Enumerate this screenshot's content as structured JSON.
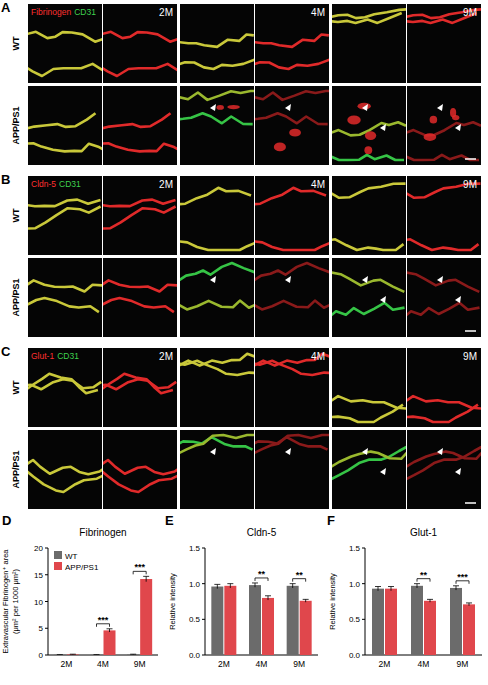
{
  "figure_panels": [
    {
      "letter": "A",
      "stains": [
        {
          "text": "Fibrinogen",
          "color": "#ff3030"
        },
        {
          "text": "CD31",
          "color": "#3fd24f"
        }
      ],
      "rows": [
        "WT",
        "APP/PS1"
      ],
      "timepoints": [
        "2M",
        "4M",
        "9M"
      ]
    },
    {
      "letter": "B",
      "stains": [
        {
          "text": "Cldn-5",
          "color": "#ff3030"
        },
        {
          "text": "CD31",
          "color": "#3fd24f"
        }
      ],
      "rows": [
        "WT",
        "APP/PS1"
      ],
      "timepoints": [
        "2M",
        "4M",
        "9M"
      ]
    },
    {
      "letter": "C",
      "stains": [
        {
          "text": "Glut-1",
          "color": "#ff3030"
        },
        {
          "text": "CD31",
          "color": "#3fd24f"
        }
      ],
      "rows": [
        "WT",
        "APP/PS1"
      ],
      "timepoints": [
        "2M",
        "4M",
        "9M"
      ]
    }
  ],
  "chart_data": [
    {
      "panel": "D",
      "type": "bar",
      "title": "Fibrinogen",
      "ylabel": [
        "Extravascular Fibrinogen⁺ area",
        "(μm² per 1000 μm²)"
      ],
      "categories": [
        "2M",
        "4M",
        "9M"
      ],
      "series": [
        {
          "name": "WT",
          "color": "#6b6b6b",
          "values": [
            0.05,
            0.05,
            0.1
          ],
          "errors": [
            0.02,
            0.02,
            0.05
          ]
        },
        {
          "name": "APP/PS1",
          "color": "#e0474c",
          "values": [
            0.1,
            4.6,
            14.2
          ],
          "errors": [
            0.05,
            0.3,
            0.5
          ]
        }
      ],
      "ylim": [
        0,
        20
      ],
      "yticks": [
        0,
        5,
        10,
        15,
        20
      ],
      "legend": "upper left",
      "annotations": [
        {
          "text": "***",
          "category": "4M"
        },
        {
          "text": "***",
          "category": "9M"
        }
      ]
    },
    {
      "panel": "E",
      "type": "bar",
      "title": "Cldn-5",
      "ylabel": [
        "Relative intensity"
      ],
      "categories": [
        "2M",
        "4M",
        "9M"
      ],
      "series": [
        {
          "name": "WT",
          "color": "#6b6b6b",
          "values": [
            0.96,
            0.98,
            0.97
          ],
          "errors": [
            0.03,
            0.03,
            0.03
          ]
        },
        {
          "name": "APP/PS1",
          "color": "#e0474c",
          "values": [
            0.97,
            0.8,
            0.76
          ],
          "errors": [
            0.03,
            0.03,
            0.02
          ]
        }
      ],
      "ylim": [
        0,
        1.5
      ],
      "yticks": [
        {
          "value": 0,
          "label": "0.0"
        },
        {
          "value": 0.5,
          "label": "0.5"
        },
        {
          "value": 1,
          "label": "1.0"
        },
        {
          "value": 1.5,
          "label": "1.5"
        }
      ],
      "annotations": [
        {
          "text": "**",
          "category": "4M"
        },
        {
          "text": "**",
          "category": "9M"
        }
      ]
    },
    {
      "panel": "F",
      "type": "bar",
      "title": "Glut-1",
      "ylabel": [
        "Relative intensity"
      ],
      "categories": [
        "2M",
        "4M",
        "9M"
      ],
      "series": [
        {
          "name": "WT",
          "color": "#6b6b6b",
          "values": [
            0.93,
            0.97,
            0.94
          ],
          "errors": [
            0.03,
            0.03,
            0.03
          ]
        },
        {
          "name": "APP/PS1",
          "color": "#e0474c",
          "values": [
            0.93,
            0.76,
            0.71
          ],
          "errors": [
            0.03,
            0.02,
            0.02
          ]
        }
      ],
      "ylim": [
        0,
        1.5
      ],
      "yticks": [
        {
          "value": 0,
          "label": "0.0"
        },
        {
          "value": 0.5,
          "label": "0.5"
        },
        {
          "value": 1,
          "label": "1.0"
        },
        {
          "value": 1.5,
          "label": "1.5"
        }
      ],
      "annotations": [
        {
          "text": "**",
          "category": "4M"
        },
        {
          "text": "***",
          "category": "9M"
        }
      ]
    }
  ]
}
